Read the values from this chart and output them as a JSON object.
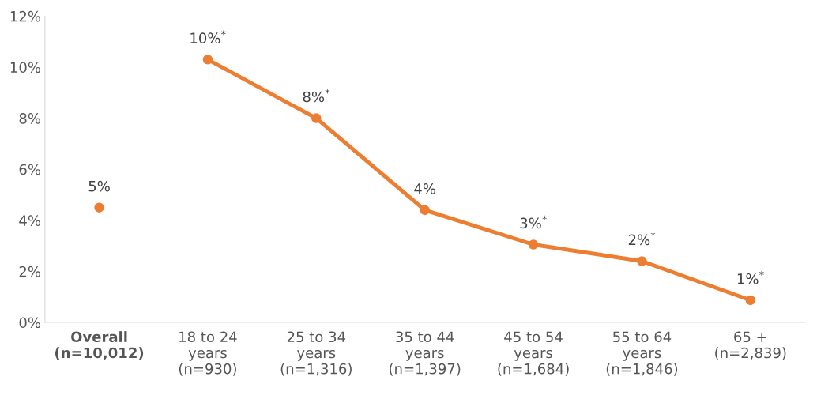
{
  "chart_data": {
    "type": "line",
    "categories": [
      "Overall\n(n=10,012)",
      "18 to 24\nyears\n(n=930)",
      "25 to 34\nyears\n(n=1,316)",
      "35 to 44\nyears\n(n=1,397)",
      "45 to 54\nyears\n(n=1,684)",
      "55 to 64\nyears\n(n=1,846)",
      "65 +\n(n=2,839)"
    ],
    "series": [
      {
        "type": "scatter",
        "color": "#ed7d31",
        "values": [
          4.5,
          null,
          null,
          null,
          null,
          null,
          null
        ],
        "value_labels": [
          "5%",
          null,
          null,
          null,
          null,
          null,
          null
        ]
      },
      {
        "color": "#ed7d31",
        "values": [
          null,
          10.3,
          8.0,
          4.4,
          3.05,
          2.4,
          0.87
        ],
        "value_labels": [
          null,
          "10%$^{*}$",
          "8%$^{*}$",
          "4%",
          "3%$^{*}$",
          "2%$^{*}$",
          "1%$^{*}$"
        ]
      }
    ],
    "ylim": [
      0,
      12
    ],
    "yticks": [
      {
        "value": 0,
        "label": "0%"
      },
      {
        "value": 2,
        "label": "2%"
      },
      {
        "value": 4,
        "label": "4%"
      },
      {
        "value": 6,
        "label": "6%"
      },
      {
        "value": 8,
        "label": "8%"
      },
      {
        "value": 10,
        "label": "10%"
      },
      {
        "value": 12,
        "label": "12%"
      }
    ],
    "marker": "circle",
    "line_style": "solid",
    "grid": false,
    "legend": false
  }
}
